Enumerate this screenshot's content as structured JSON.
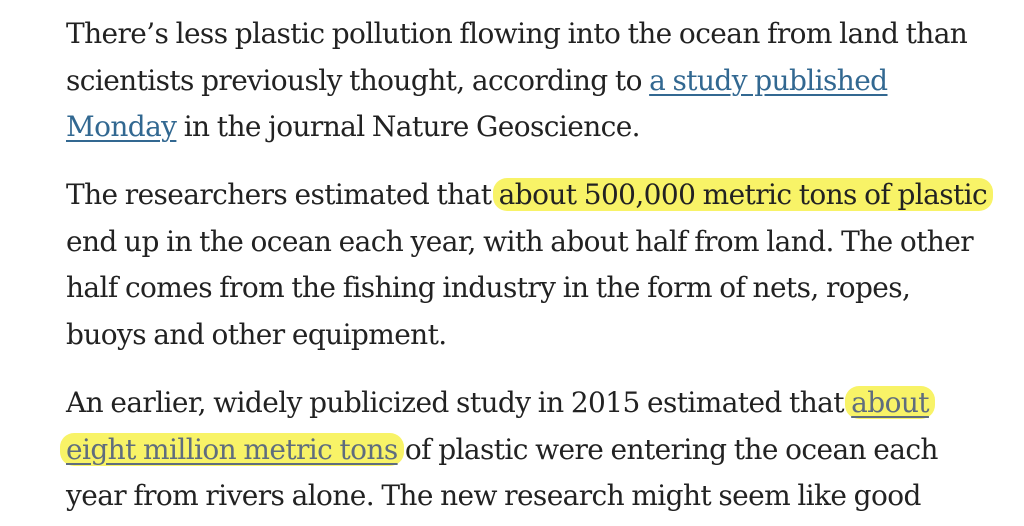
{
  "article": {
    "p1": {
      "l1": "There’s less plastic pollution flowing into the ocean from land than",
      "l2_pre": "scientists previously thought, according to ",
      "l2_link": "a study published",
      "l3_link": "Monday",
      "l3_post": " in the journal Nature Geoscience."
    },
    "p2": {
      "l1_pre": "The researchers estimated that ",
      "l1_hl": "about 500,000 metric tons of plastic",
      "l2": "end up in the ocean each year, with about half from land. The other",
      "l3": "half comes from the fishing industry in the form of nets, ropes,",
      "l4": "buoys and other equipment."
    },
    "p3": {
      "l1_pre": "An earlier, widely publicized study in 2015 estimated that ",
      "l1_link": "about",
      "l2_link": "eight million metric tons",
      "l2_post": " of plastic were entering the ocean each",
      "l3": "year from rivers alone. The new research might seem like good"
    }
  },
  "colors": {
    "text": "#222222",
    "link": "#326891",
    "highlight": "#f6f03c"
  }
}
